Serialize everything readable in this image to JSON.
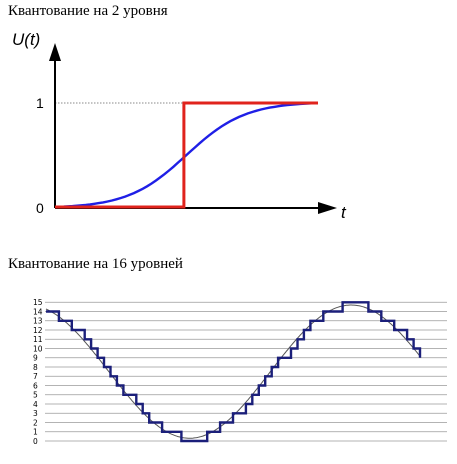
{
  "top_chart": {
    "title": "Квантование на 2 уровня",
    "ylabel": "U(t)",
    "xlabel": "t",
    "yticks": [
      "1",
      "0"
    ],
    "colors": {
      "step": "#e0231c",
      "curve": "#1f1fe6",
      "axis": "#000000"
    }
  },
  "bottom_chart": {
    "title": "Квантование на 16 уровней",
    "yticks": [
      "15",
      "14",
      "13",
      "12",
      "11",
      "10",
      "9",
      "8",
      "7",
      "6",
      "5",
      "4",
      "3",
      "2",
      "1",
      "0"
    ],
    "colors": {
      "sine": "#555555",
      "steps": "#1b1f7a",
      "grid": "#9a9a9a"
    }
  },
  "chart_data": [
    {
      "type": "line",
      "title": "Квантование на 2 уровня",
      "xlabel": "t",
      "ylabel": "U(t)",
      "ylim": [
        0,
        1
      ],
      "series": [
        {
          "x": [
            0,
            0.49,
            0.49,
            1
          ],
          "y": [
            0,
            0,
            1,
            1
          ]
        },
        {
          "x": [
            0,
            0.1,
            0.2,
            0.3,
            0.4,
            0.5,
            0.6,
            0.7,
            0.8,
            0.9,
            1.0
          ],
          "y": [
            0.0,
            0.03,
            0.08,
            0.18,
            0.33,
            0.52,
            0.7,
            0.84,
            0.93,
            0.98,
            1.0
          ]
        }
      ]
    },
    {
      "type": "line",
      "title": "Квантование на 16 уровней",
      "ylim": [
        0,
        15
      ],
      "yticks": [
        0,
        1,
        2,
        3,
        4,
        5,
        6,
        7,
        8,
        9,
        10,
        11,
        12,
        13,
        14,
        15
      ],
      "series": [
        {
          "x": [
            0,
            3.83
          ],
          "y": [
            13.2,
            1.3
          ]
        }
      ]
    }
  ]
}
